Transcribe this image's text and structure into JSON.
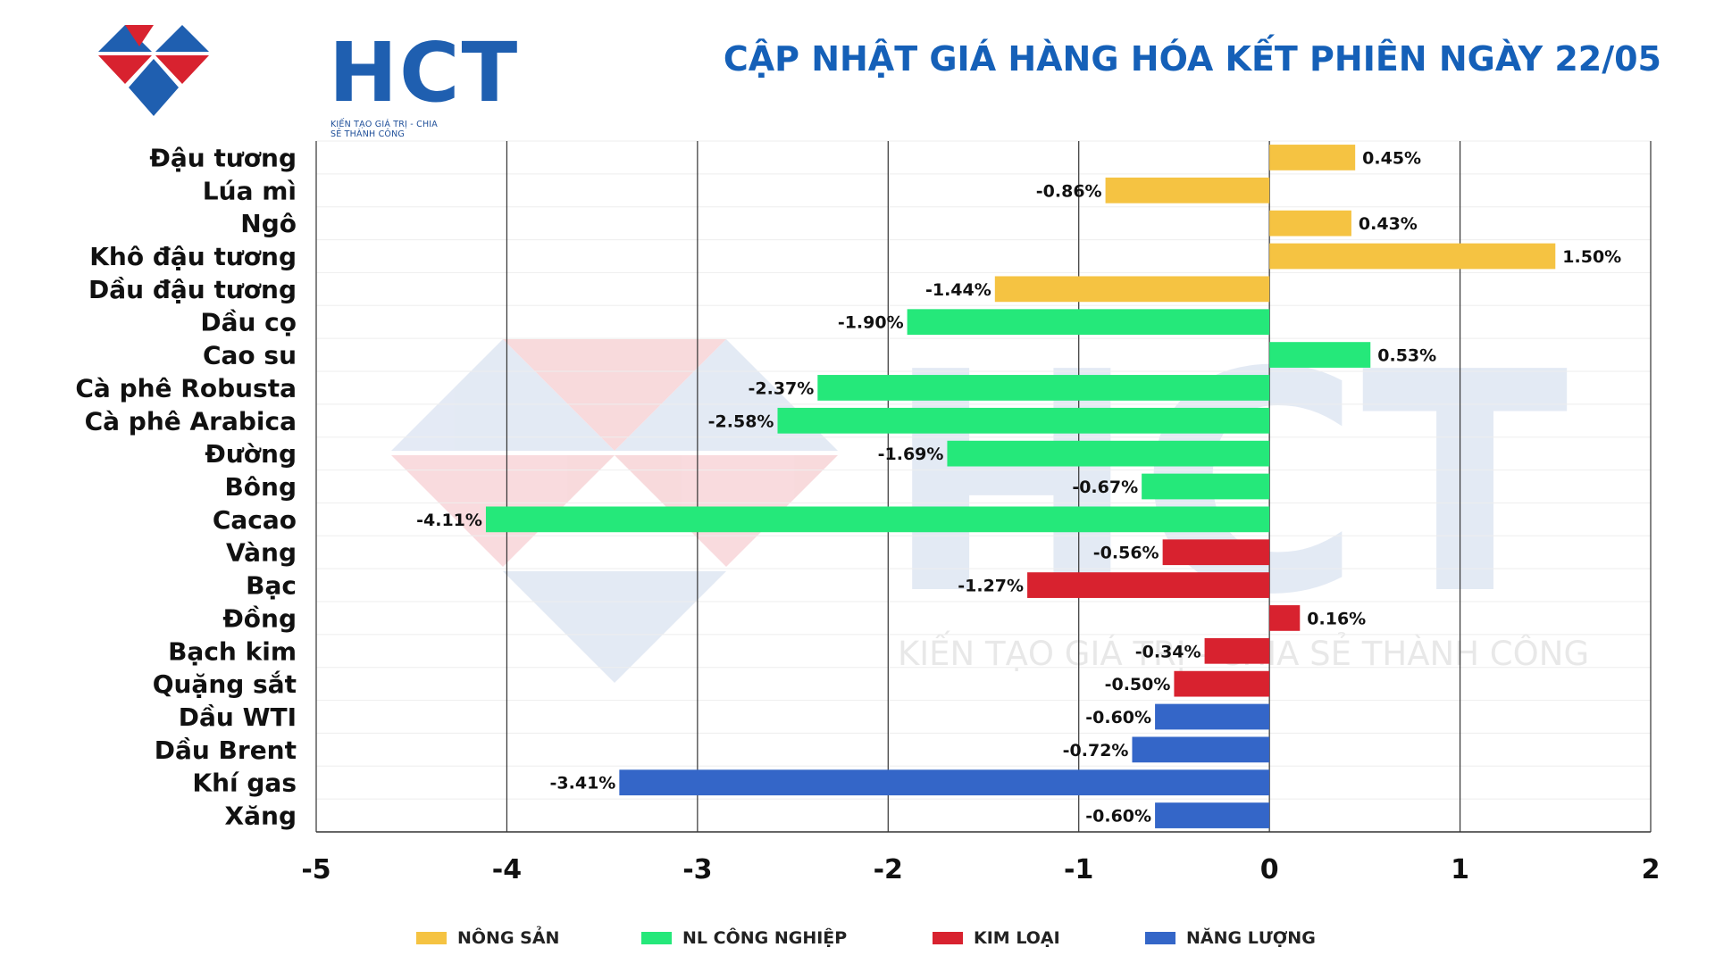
{
  "header": {
    "logo_text": "HCT",
    "logo_tagline": "KIẾN TẠO GIÁ TRỊ - CHIA SẺ THÀNH CÔNG",
    "title": "CẬP NHẬT GIÁ HÀNG HÓA KẾT PHIÊN NGÀY 22/05"
  },
  "watermark": {
    "text": "HCT",
    "tagline": "KIẾN TẠO GIÁ TRỊ - CHIA SẺ THÀNH CÔNG"
  },
  "colors": {
    "nong_san": "#f5c342",
    "nl_cong_nghiep": "#25e87a",
    "kim_loai": "#d8222f",
    "nang_luong": "#3466c8",
    "title": "#1560b8"
  },
  "legend": [
    {
      "label": "NÔNG SẢN",
      "color": "#f5c342"
    },
    {
      "label": "NL CÔNG NGHIỆP",
      "color": "#25e87a"
    },
    {
      "label": "KIM LOẠI",
      "color": "#d8222f"
    },
    {
      "label": "NĂNG LƯỢNG",
      "color": "#3466c8"
    }
  ],
  "chart_data": {
    "type": "bar",
    "orientation": "horizontal",
    "xlim": [
      -5,
      2
    ],
    "xticks": [
      "-5",
      "-4",
      "-3",
      "-2",
      "-1",
      "0",
      "1",
      "2"
    ],
    "grid": true,
    "legend_position": "bottom",
    "categories": [
      "Đậu tương",
      "Lúa mì",
      "Ngô",
      "Khô đậu tương",
      "Dầu đậu tương",
      "Dầu cọ",
      "Cao su",
      "Cà phê Robusta",
      "Cà phê Arabica",
      "Đường",
      "Bông",
      "Cacao",
      "Vàng",
      "Bạc",
      "Đồng",
      "Bạch kim",
      "Quặng sắt",
      "Dầu WTI",
      "Dầu Brent",
      "Khí gas",
      "Xăng"
    ],
    "values": [
      0.45,
      -0.86,
      0.43,
      1.5,
      -1.44,
      -1.9,
      0.53,
      -2.37,
      -2.58,
      -1.69,
      -0.67,
      -4.11,
      -0.56,
      -1.27,
      0.16,
      -0.34,
      -0.5,
      -0.6,
      -0.72,
      -3.41,
      -0.6
    ],
    "labels": [
      "0.45%",
      "-0.86%",
      "0.43%",
      "1.50%",
      "-1.44%",
      "-1.90%",
      "0.53%",
      "-2.37%",
      "-2.58%",
      "-1.69%",
      "-0.67%",
      "-4.11%",
      "-0.56%",
      "-1.27%",
      "0.16%",
      "-0.34%",
      "-0.50%",
      "-0.60%",
      "-0.72%",
      "-3.41%",
      "-0.60%"
    ],
    "groups": [
      "NÔNG SẢN",
      "NÔNG SẢN",
      "NÔNG SẢN",
      "NÔNG SẢN",
      "NÔNG SẢN",
      "NL CÔNG NGHIỆP",
      "NL CÔNG NGHIỆP",
      "NL CÔNG NGHIỆP",
      "NL CÔNG NGHIỆP",
      "NL CÔNG NGHIỆP",
      "NL CÔNG NGHIỆP",
      "NL CÔNG NGHIỆP",
      "KIM LOẠI",
      "KIM LOẠI",
      "KIM LOẠI",
      "KIM LOẠI",
      "KIM LOẠI",
      "NĂNG LƯỢNG",
      "NĂNG LƯỢNG",
      "NĂNG LƯỢNG",
      "NĂNG LƯỢNG"
    ]
  }
}
